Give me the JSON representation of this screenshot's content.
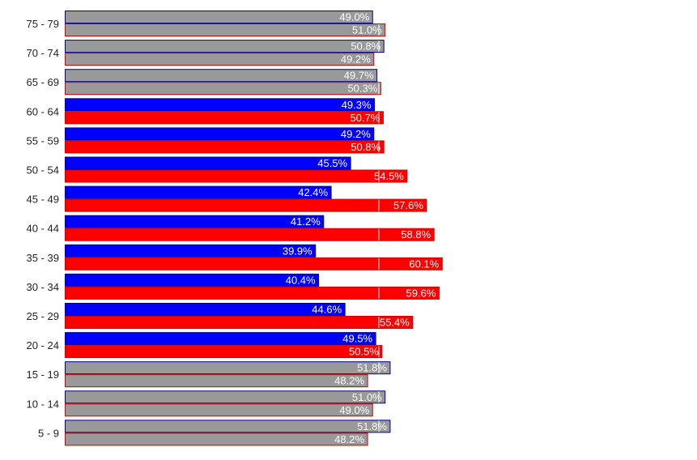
{
  "chart_data": {
    "type": "bar",
    "orientation": "horizontal",
    "categories": [
      "75 - 79",
      "70 - 74",
      "65 - 69",
      "60 - 64",
      "55 - 59",
      "50 - 54",
      "45 - 49",
      "40 - 44",
      "35 - 39",
      "30 - 34",
      "25 - 29",
      "20 - 24",
      "15 - 19",
      "10 - 14",
      "5 - 9"
    ],
    "series": [
      {
        "values": [
          49.0,
          50.8,
          49.7,
          49.3,
          49.2,
          45.5,
          42.4,
          41.2,
          39.9,
          40.4,
          44.6,
          49.5,
          51.8,
          51.0,
          51.8
        ],
        "labels": [
          "49.0%",
          "50.8%",
          "49.7%",
          "49.3%",
          "49.2%",
          "45.5%",
          "42.4%",
          "41.2%",
          "39.9%",
          "40.4%",
          "44.6%",
          "49.5%",
          "51.8%",
          "51.0%",
          "51.8%"
        ],
        "color": "#0000ff",
        "border": "#00008b"
      },
      {
        "values": [
          51.0,
          49.2,
          50.3,
          50.7,
          50.8,
          54.5,
          57.6,
          58.8,
          60.1,
          59.6,
          55.4,
          50.5,
          48.2,
          49.0,
          48.2
        ],
        "labels": [
          "51.0%",
          "49.2%",
          "50.3%",
          "50.7%",
          "50.8%",
          "54.5%",
          "57.6%",
          "58.8%",
          "60.1%",
          "59.6%",
          "55.4%",
          "50.5%",
          "48.2%",
          "49.0%",
          "48.2%"
        ],
        "color": "#ff0000",
        "border": "#cc0000"
      }
    ],
    "muted_categories": [
      "75 - 79",
      "70 - 74",
      "65 - 69",
      "15 - 19",
      "10 - 14",
      "5 - 9"
    ],
    "muted_color": "#999999",
    "reference_line_value": 50,
    "xlim": [
      0,
      60.1
    ],
    "grid": false,
    "legend": "none",
    "title": "",
    "xlabel": "",
    "ylabel": ""
  }
}
